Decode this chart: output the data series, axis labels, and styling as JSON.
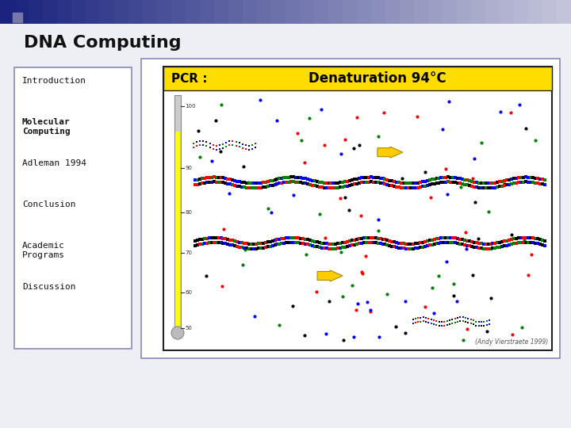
{
  "title": "DNA Computing",
  "nav_items": [
    "Introduction",
    "Molecular\nComputing",
    "Adleman 1994",
    "Conclusion",
    "Academic\nPrograms",
    "Discussion"
  ],
  "nav_bold": [
    false,
    true,
    false,
    false,
    false,
    false
  ],
  "credit": "(Andy Vierstraete 1999)",
  "bg_color": "#eeeef5",
  "header_bg_left": "#1a237e",
  "header_bg_right": "#ccccdd",
  "slide_bg": "#ffffff",
  "nav_border": "#8888bb",
  "content_border": "#8888bb",
  "pcr_bar_color": "#ffdd00",
  "dot_colors": [
    "red",
    "blue",
    "green",
    "black"
  ],
  "title_fontsize": 16,
  "nav_fontsize": 8
}
